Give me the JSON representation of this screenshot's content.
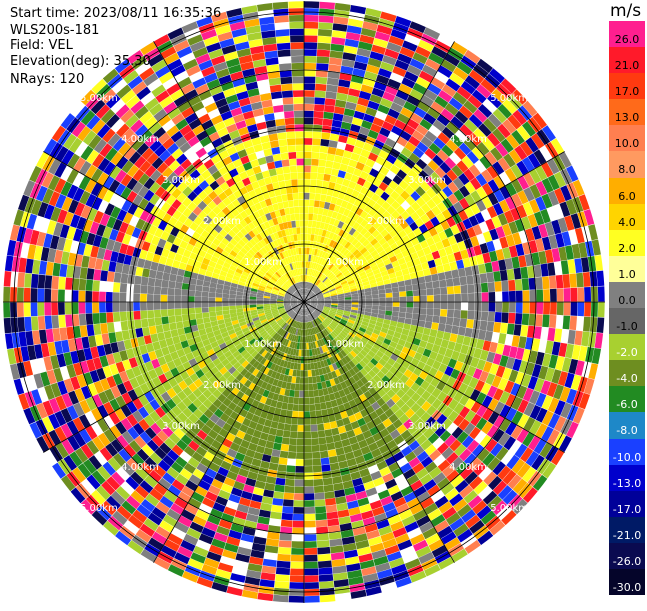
{
  "header": {
    "start_time": "Start time: 2023/08/11 16:35:36",
    "instrument": "WLS200s-181",
    "field": "Field: VEL",
    "elevation": "Elevation(deg): 35.30",
    "nrays": "NRays: 120"
  },
  "colorbar": {
    "unit": "m/s",
    "levels": [
      {
        "label": "26.0",
        "color": "#ff1f8f"
      },
      {
        "label": "21.0",
        "color": "#ff1a2a"
      },
      {
        "label": "17.0",
        "color": "#ff3a10"
      },
      {
        "label": "13.0",
        "color": "#ff6a1a"
      },
      {
        "label": "10.0",
        "color": "#ff7f50"
      },
      {
        "label": "8.0",
        "color": "#ff9a60"
      },
      {
        "label": "6.0",
        "color": "#ffae00"
      },
      {
        "label": "4.0",
        "color": "#ffd400"
      },
      {
        "label": "2.0",
        "color": "#ffff22"
      },
      {
        "label": "1.0",
        "color": "#ffff99"
      },
      {
        "label": "0.0",
        "color": "#808080"
      },
      {
        "label": "-1.0",
        "color": "#666666"
      },
      {
        "label": "-2.0",
        "color": "#a8d030"
      },
      {
        "label": "-4.0",
        "color": "#6e8e20"
      },
      {
        "label": "-6.0",
        "color": "#228b22"
      },
      {
        "label": "-8.0",
        "color": "#1e88c8"
      },
      {
        "label": "-10.0",
        "color": "#1a40ff"
      },
      {
        "label": "-13.0",
        "color": "#0000cc"
      },
      {
        "label": "-17.0",
        "color": "#000099"
      },
      {
        "label": "-21.0",
        "color": "#001a66"
      },
      {
        "label": "-26.0",
        "color": "#0a0a50"
      },
      {
        "label": "-30.0",
        "color": "#05052a"
      }
    ]
  },
  "range_rings": {
    "labels": [
      "1.00km",
      "2.00km",
      "3.00km",
      "4.00km",
      "5.00km"
    ]
  },
  "scan": {
    "rays": 120
  }
}
